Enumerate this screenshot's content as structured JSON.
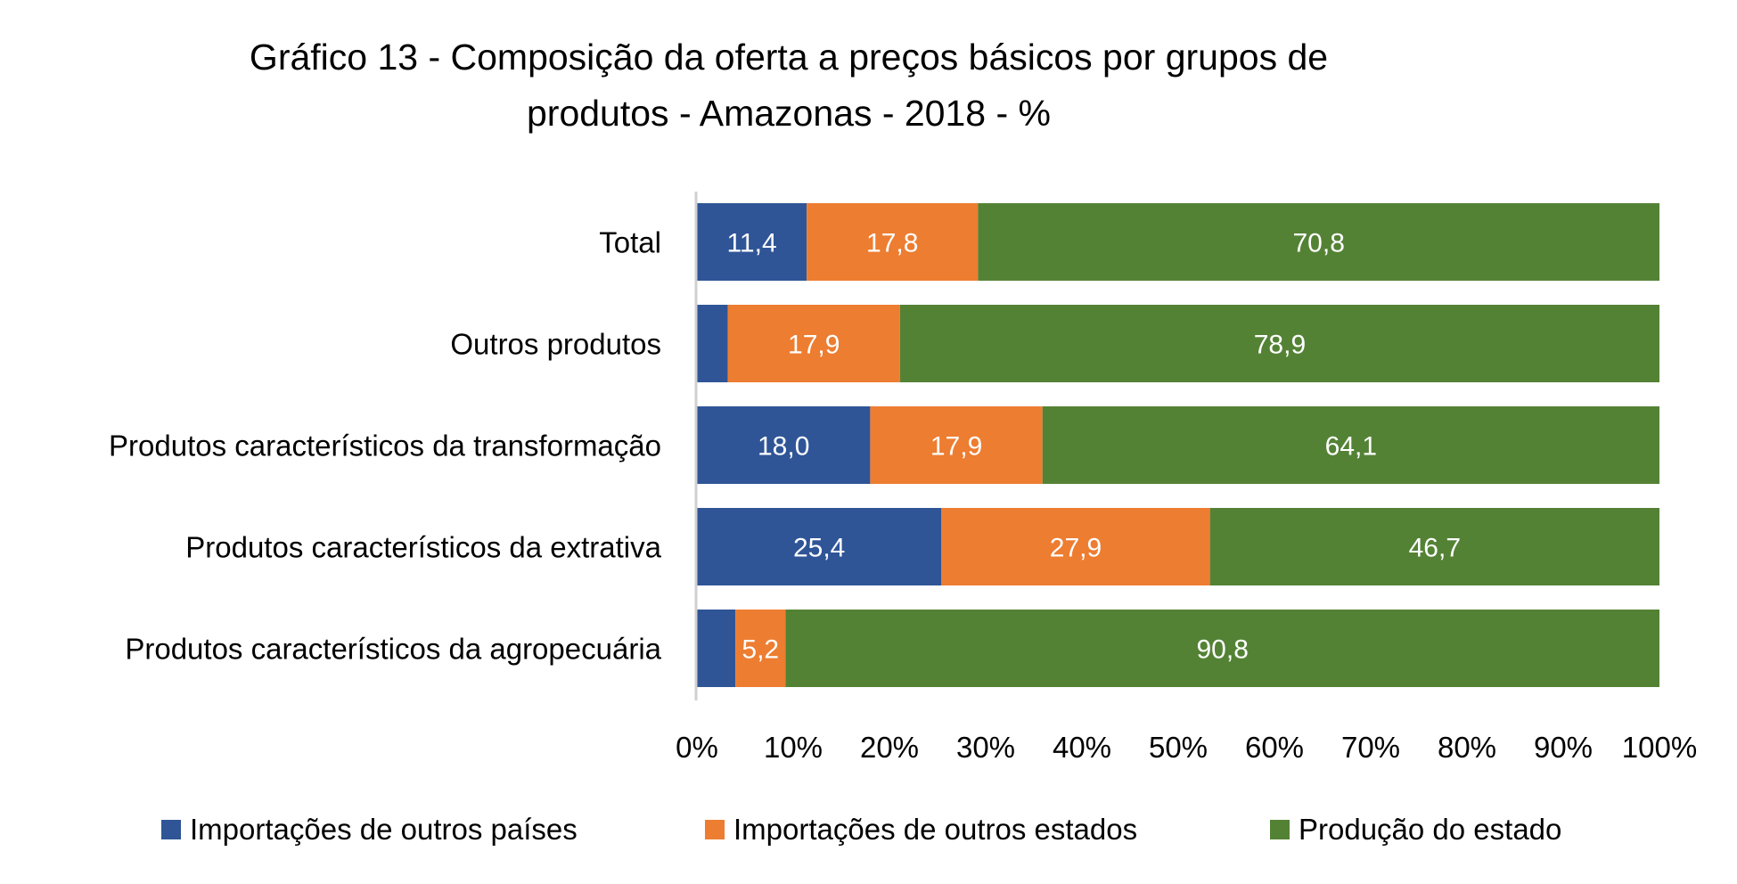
{
  "chart_data": {
    "type": "bar",
    "orientation": "horizontal",
    "stacked": "percent",
    "title": [
      "Gráfico 13 - Composição da oferta a preços básicos por grupos de",
      "produtos - Amazonas - 2018 - %"
    ],
    "categories": [
      "Total",
      "Outros produtos",
      "Produtos característicos da transformação",
      "Produtos característicos da extrativa",
      "Produtos característicos da agropecuária"
    ],
    "series": [
      {
        "name": "Importações de outros países",
        "color": "#2F5597",
        "values": [
          11.4,
          3.2,
          18.0,
          25.4,
          4.0
        ],
        "labels": [
          "11,4",
          "",
          "18,0",
          "25,4",
          ""
        ]
      },
      {
        "name": "Importações de outros estados",
        "color": "#ED7D31",
        "values": [
          17.8,
          17.9,
          17.9,
          27.9,
          5.2
        ],
        "labels": [
          "17,8",
          "17,9",
          "17,9",
          "27,9",
          "5,2"
        ]
      },
      {
        "name": "Produção do estado",
        "color": "#548235",
        "values": [
          70.8,
          78.9,
          64.1,
          46.7,
          90.8
        ],
        "labels": [
          "70,8",
          "78,9",
          "64,1",
          "46,7",
          "90,8"
        ]
      }
    ],
    "xlim": [
      0,
      100
    ],
    "xticks": [
      "0%",
      "10%",
      "20%",
      "30%",
      "40%",
      "50%",
      "60%",
      "70%",
      "80%",
      "90%",
      "100%"
    ],
    "grid": false,
    "legend": "bottom"
  }
}
